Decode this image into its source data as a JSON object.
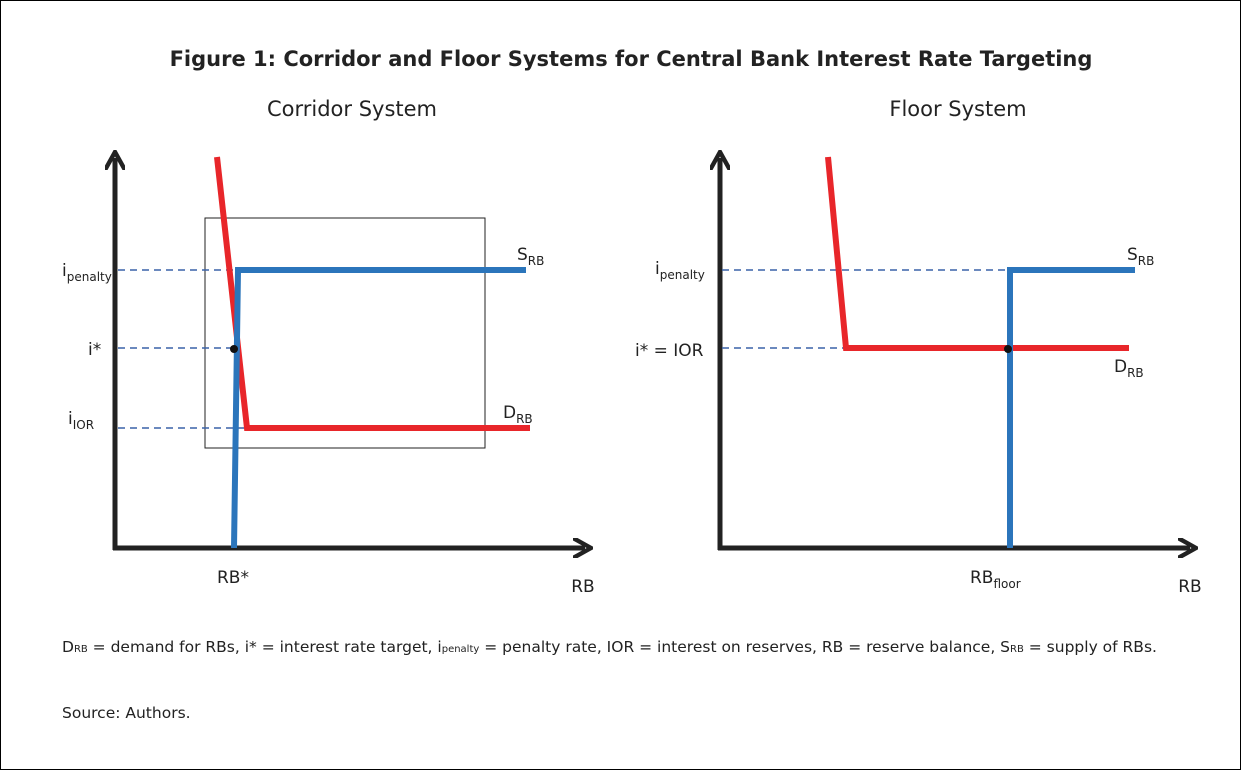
{
  "title": "Figure 1: Corridor and Floor Systems for Central Bank Interest Rate Targeting",
  "panels": [
    {
      "title": "Corridor System",
      "labels": {
        "penalty": {
          "base": "i",
          "sub": "penalty"
        },
        "target": {
          "base": "i*"
        },
        "ior": {
          "base": "i",
          "sub": "IOR"
        },
        "supply": {
          "base": "S",
          "sub": "RB"
        },
        "demand": {
          "base": "D",
          "sub": "RB"
        },
        "rbstar": {
          "base": "RB*"
        },
        "xaxis": {
          "base": "RB"
        }
      }
    },
    {
      "title": "Floor System",
      "labels": {
        "penalty": {
          "base": "i",
          "sub": "penalty"
        },
        "target": {
          "base": "i* = IOR"
        },
        "supply": {
          "base": "S",
          "sub": "RB"
        },
        "demand": {
          "base": "D",
          "sub": "RB"
        },
        "rbfloor": {
          "base": "RB",
          "sub": "floor"
        },
        "xaxis": {
          "base": "RB"
        }
      }
    }
  ],
  "note": [
    {
      "text": "D"
    },
    {
      "sub": "RB"
    },
    {
      "text": " = demand for RBs, i* = interest rate target, i"
    },
    {
      "sub": "penalty"
    },
    {
      "text": " = penalty rate, IOR = interest on reserves, RB = reserve balance, S"
    },
    {
      "sub": "RB"
    },
    {
      "text": " = supply of RBs."
    }
  ],
  "source": "Source: Authors."
}
